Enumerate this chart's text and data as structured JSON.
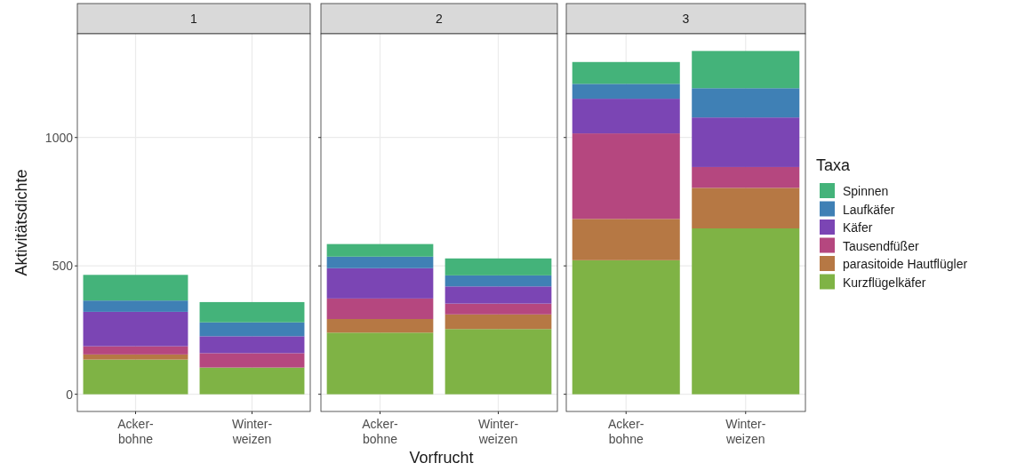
{
  "chart_data": [
    {
      "type": "bar",
      "title": "1",
      "ylabel": "Aktivitätsdichte",
      "categories": [
        "Acker-\nbohne",
        "Winter-\nweizen"
      ],
      "stacked": true,
      "ylim": [
        -67,
        1404
      ],
      "yticks": [
        0,
        500,
        1000
      ],
      "grid": true,
      "legend": false,
      "series": [
        {
          "color": "#7fb345",
          "values": [
            135,
            104
          ]
        },
        {
          "color": "#b67844",
          "values": [
            20,
            0
          ]
        },
        {
          "color": "#b5477f",
          "values": [
            32,
            56
          ]
        },
        {
          "color": "#7b45b4",
          "values": [
            134,
            66
          ]
        },
        {
          "color": "#3f80b5",
          "values": [
            44,
            54
          ]
        },
        {
          "color": "#44b37a",
          "values": [
            100,
            79
          ]
        }
      ]
    },
    {
      "type": "bar",
      "title": "2",
      "xlabel": "Vorfrucht",
      "categories": [
        "Acker-\nbohne",
        "Winter-\nweizen"
      ],
      "stacked": true,
      "ylim": [
        -67,
        1404
      ],
      "yticks": [
        0,
        500,
        1000
      ],
      "grid": true,
      "legend": false,
      "tick_labels": "x",
      "series": [
        {
          "color": "#7fb345",
          "values": [
            240,
            254
          ]
        },
        {
          "color": "#b67844",
          "values": [
            53,
            57
          ]
        },
        {
          "color": "#b5477f",
          "values": [
            80,
            42
          ]
        },
        {
          "color": "#7b45b4",
          "values": [
            118,
            67
          ]
        },
        {
          "color": "#3f80b5",
          "values": [
            45,
            43
          ]
        },
        {
          "color": "#44b37a",
          "values": [
            49,
            66
          ]
        }
      ]
    },
    {
      "type": "bar",
      "title": "3",
      "categories": [
        "Acker-\nbohne",
        "Winter-\nweizen"
      ],
      "stacked": true,
      "ylim": [
        -67,
        1404
      ],
      "yticks": [
        0,
        500,
        1000
      ],
      "grid": true,
      "legend": "right",
      "legend_title": "Taxa",
      "tick_labels": "x",
      "series": [
        {
          "name": "Kurzflügelkäfer",
          "color": "#7fb345",
          "values": [
            522,
            646
          ]
        },
        {
          "name": "parasitoide Hautflügler",
          "color": "#b67844",
          "values": [
            161,
            158
          ]
        },
        {
          "name": "Tausendfüßer",
          "color": "#b5477f",
          "values": [
            333,
            81
          ]
        },
        {
          "name": "Käfer",
          "color": "#7b45b4",
          "values": [
            135,
            193
          ]
        },
        {
          "name": "Laufkäfer",
          "color": "#3f80b5",
          "values": [
            58,
            114
          ]
        },
        {
          "name": "Spinnen",
          "color": "#44b37a",
          "values": [
            85,
            145
          ]
        }
      ]
    }
  ]
}
